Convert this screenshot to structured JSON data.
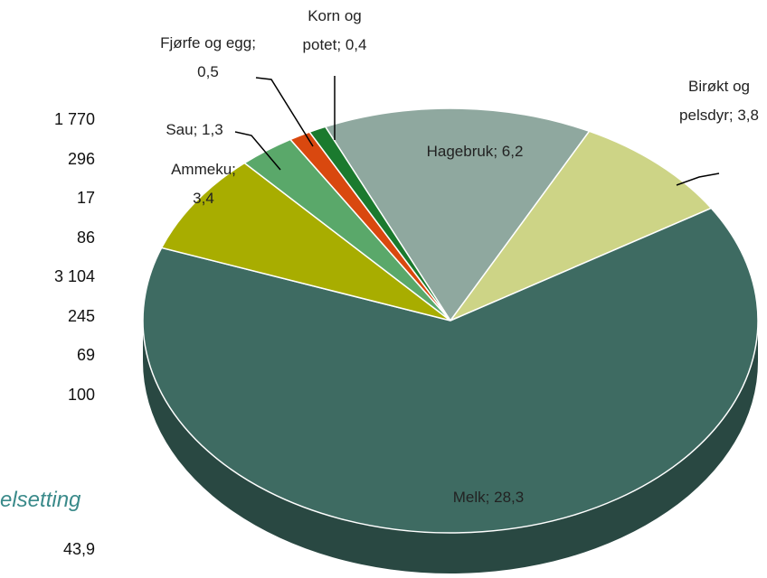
{
  "chart_data": {
    "type": "pie",
    "label_separator": "; ",
    "categories": [
      "Hagebruk",
      "Birøkt og pelsdyr",
      "Melk",
      "Ammeku",
      "Sau",
      "Fjørfe og egg",
      "Korn og potet"
    ],
    "values": [
      6.2,
      3.8,
      28.3,
      3.4,
      1.3,
      0.5,
      0.4
    ],
    "value_labels": [
      "6,2",
      "3,8",
      "28,3",
      "3,4",
      "1,3",
      "0,5",
      "0,4"
    ],
    "colors": [
      "#8fa89f",
      "#cdd486",
      "#3e6b62",
      "#a8ad00",
      "#5aa86a",
      "#d9480f",
      "#1b7a2e"
    ],
    "side_colors": [
      "#62756f",
      "#8f945d",
      "#294842",
      "#767900",
      "#3f764a",
      "#98320a",
      "#125520"
    ]
  },
  "side_text": {
    "numbers": [
      "1 770",
      "296",
      "17",
      "86",
      "3 104",
      "245",
      "69",
      "100"
    ],
    "heading": "elsetting",
    "total": "43,9"
  }
}
